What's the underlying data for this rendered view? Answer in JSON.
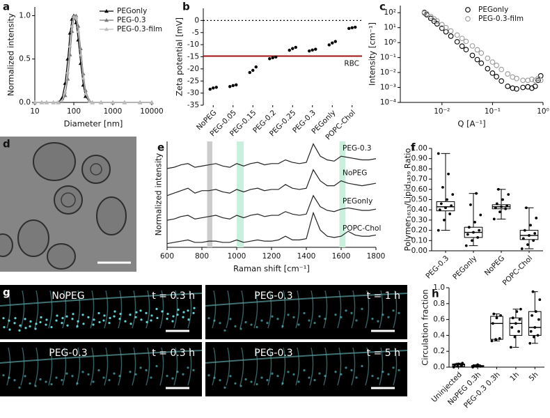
{
  "chart_data": [
    {
      "panel": "a",
      "type": "line",
      "xscale": "log",
      "markers": true,
      "marker": "triangle",
      "legend": "upper right",
      "xlabel": "Diameter [nm]",
      "ylabel": "Normalized intensity",
      "xlim": [
        10,
        10000
      ],
      "xticks": [
        10,
        100,
        1000,
        10000
      ],
      "ylim": [
        0,
        1.1
      ],
      "yticks": [
        {
          "value": 0,
          "label": "0.0"
        },
        {
          "value": 0.5,
          "label": "0.5"
        },
        {
          "value": 1,
          "label": "1.0"
        }
      ],
      "x": [
        10,
        15,
        20,
        30,
        40,
        50,
        60,
        70,
        80,
        90,
        100,
        115,
        130,
        150,
        175,
        200,
        250,
        300,
        500,
        1000,
        2000,
        5000,
        10000
      ],
      "series": [
        {
          "name": "PEGonly",
          "color": "#000000",
          "values": [
            0,
            0,
            0,
            0,
            0,
            0.05,
            0.22,
            0.5,
            0.8,
            0.96,
            1.0,
            0.92,
            0.72,
            0.45,
            0.2,
            0.07,
            0.01,
            0,
            0,
            0,
            0,
            0,
            0
          ]
        },
        {
          "name": "PEG-0.3",
          "color": "#777777",
          "values": [
            0,
            0,
            0,
            0,
            0,
            0.01,
            0.08,
            0.27,
            0.55,
            0.82,
            0.97,
            1.0,
            0.88,
            0.62,
            0.33,
            0.14,
            0.02,
            0,
            0,
            0,
            0,
            0,
            0
          ]
        },
        {
          "name": "PEG-0.3-film",
          "color": "#bbbbbb",
          "values": [
            0,
            0,
            0,
            0,
            0,
            0.02,
            0.12,
            0.35,
            0.65,
            0.88,
            0.99,
            0.98,
            0.82,
            0.55,
            0.28,
            0.1,
            0.01,
            0,
            0,
            0,
            0,
            0,
            0
          ]
        }
      ]
    },
    {
      "panel": "b",
      "type": "strip",
      "color": "#000000",
      "ylabel": "Zeta potential [mV]",
      "categories": [
        "NoPEG",
        "PEG-0.05",
        "PEG-0.15",
        "PEG-0.2",
        "PEG-0.25",
        "PEG-0.3",
        "PEGonly",
        "POPC-Chol"
      ],
      "values": [
        [
          -28.4,
          -27.9,
          -27.6
        ],
        [
          -27.3,
          -26.9,
          -26.6
        ],
        [
          -21.5,
          -20.6,
          -19.2
        ],
        [
          -15.8,
          -15.4,
          -15.1
        ],
        [
          -12.3,
          -11.6,
          -11.1
        ],
        [
          -12.6,
          -12.2,
          -11.9
        ],
        [
          -10.1,
          -9.3,
          -8.7
        ],
        [
          -3.3,
          -3.0,
          -2.8
        ]
      ],
      "ylim": [
        -35,
        5
      ],
      "yticks": [
        -35,
        -30,
        -25,
        -20,
        -15,
        -10,
        -5,
        0
      ],
      "reference_lines": [
        {
          "value": 0,
          "style": "dotted",
          "color": "#000000"
        },
        {
          "value": -14.7,
          "style": "solid",
          "color": "#a01010",
          "label": "RBC"
        }
      ]
    },
    {
      "panel": "c",
      "type": "scatter",
      "xscale": "log",
      "yscale": "log",
      "legend": "upper right",
      "xlabel": "Q [A⁻¹]",
      "ylabel": "Intensity [cm⁻¹]",
      "xlim": [
        0.0015,
        1
      ],
      "xticks": [
        {
          "value": 0.01,
          "label": "10⁻²"
        },
        {
          "value": 0.1,
          "label": "10⁻¹"
        },
        {
          "value": 1,
          "label": "10⁰"
        }
      ],
      "ylim": [
        0.0001,
        300
      ],
      "yticks": [
        {
          "value": 0.0001,
          "label": "10⁻⁴"
        },
        {
          "value": 0.001,
          "label": "10⁻³"
        },
        {
          "value": 0.01,
          "label": "10⁻²"
        },
        {
          "value": 0.1,
          "label": "10⁻¹"
        },
        {
          "value": 1,
          "label": "10⁰"
        },
        {
          "value": 10,
          "label": "10¹"
        },
        {
          "value": 100,
          "label": "10²"
        }
      ],
      "x": [
        0.0045,
        0.005,
        0.006,
        0.007,
        0.008,
        0.01,
        0.012,
        0.015,
        0.02,
        0.025,
        0.03,
        0.04,
        0.05,
        0.06,
        0.08,
        0.1,
        0.12,
        0.15,
        0.2,
        0.25,
        0.3,
        0.4,
        0.5,
        0.6,
        0.7,
        0.8,
        0.9
      ],
      "series": [
        {
          "name": "PEGonly",
          "color": "#000000",
          "values": [
            100,
            73,
            42,
            27,
            18,
            9.1,
            5.3,
            2.7,
            1.14,
            0.58,
            0.34,
            0.14,
            0.073,
            0.042,
            0.018,
            0.0091,
            0.0053,
            0.0027,
            0.0012,
            0.0009,
            0.0008,
            0.001,
            0.0011,
            0.0009,
            0.0012,
            0.003,
            0.006
          ]
        },
        {
          "name": "PEG-0.3-film",
          "color": "#999999",
          "values": [
            110,
            85,
            55,
            38,
            28,
            16,
            10,
            6,
            3.2,
            1.9,
            1.2,
            0.6,
            0.33,
            0.2,
            0.09,
            0.05,
            0.03,
            0.016,
            0.008,
            0.005,
            0.004,
            0.003,
            0.003,
            0.0035,
            0.003,
            0.004,
            0.003
          ]
        }
      ]
    },
    {
      "panel": "e",
      "type": "line",
      "legend": "inline",
      "xlabel": "Raman shift [cm⁻¹]",
      "ylabel": "Normalized intensity",
      "xlim": [
        600,
        1800
      ],
      "xticks": [
        600,
        800,
        1000,
        1200,
        1400,
        1600,
        1800
      ],
      "ylim": [
        -0.1,
        4.2
      ],
      "bands": [
        {
          "range": [
            830,
            860
          ],
          "color": "#cccccc"
        },
        {
          "range": [
            1000,
            1040
          ],
          "color": "#c8f0dc"
        },
        {
          "range": [
            1590,
            1625
          ],
          "color": "#c8f0dc"
        }
      ],
      "x": [
        600,
        640,
        680,
        720,
        760,
        800,
        840,
        880,
        920,
        960,
        1000,
        1040,
        1080,
        1120,
        1160,
        1200,
        1240,
        1280,
        1320,
        1360,
        1400,
        1440,
        1480,
        1520,
        1560,
        1600,
        1640,
        1680,
        1720,
        1760,
        1800
      ],
      "series": [
        {
          "name": "PEG-0.3",
          "color": "#222222",
          "values": [
            3.1,
            3.15,
            3.25,
            3.3,
            3.15,
            3.2,
            3.25,
            3.3,
            3.2,
            3.15,
            3.3,
            3.2,
            3.3,
            3.35,
            3.25,
            3.3,
            3.3,
            3.45,
            3.35,
            3.3,
            3.35,
            4.1,
            3.6,
            3.45,
            3.4,
            3.6,
            3.55,
            3.5,
            3.45,
            3.45,
            3.5
          ]
        },
        {
          "name": "NoPEG",
          "color": "#222222",
          "values": [
            2.0,
            2.1,
            2.2,
            2.3,
            2.1,
            2.2,
            2.2,
            2.25,
            2.15,
            2.1,
            2.25,
            2.15,
            2.25,
            2.3,
            2.2,
            2.25,
            2.25,
            2.45,
            2.3,
            2.25,
            2.3,
            3.05,
            2.6,
            2.4,
            2.4,
            2.6,
            2.5,
            2.45,
            2.4,
            2.45,
            2.5
          ]
        },
        {
          "name": "PEGonly",
          "color": "#222222",
          "values": [
            1.0,
            1.05,
            1.15,
            1.2,
            1.05,
            1.1,
            1.15,
            1.2,
            1.1,
            1.05,
            1.2,
            1.1,
            1.2,
            1.25,
            1.15,
            1.2,
            1.2,
            1.35,
            1.25,
            1.2,
            1.25,
            2.0,
            1.55,
            1.4,
            1.35,
            1.45,
            1.5,
            1.45,
            1.4,
            1.4,
            1.45
          ]
        },
        {
          "name": "POPC-Chol",
          "color": "#222222",
          "values": [
            0.05,
            0.1,
            0.15,
            0.2,
            0.1,
            0.1,
            0.15,
            0.15,
            0.1,
            0.1,
            0.2,
            0.1,
            0.15,
            0.2,
            0.15,
            0.15,
            0.2,
            0.35,
            0.2,
            0.2,
            0.25,
            1.3,
            0.6,
            0.35,
            0.3,
            0.35,
            0.55,
            0.4,
            0.35,
            0.35,
            0.4
          ]
        }
      ]
    },
    {
      "panel": "f",
      "type": "box",
      "color": "#000000",
      "ylabel": "Polymer₁₆₁₃/Lipid₁₄₃₉ Ratio",
      "categories": [
        "PEG-0.3",
        "PEGonly",
        "NoPEG",
        "POPC-Chol"
      ],
      "ylim": [
        0,
        1.0
      ],
      "yticks": [
        {
          "value": 0,
          "label": "0.00"
        },
        {
          "value": 0.1,
          "label": "0.10"
        },
        {
          "value": 0.2,
          "label": "0.20"
        },
        {
          "value": 0.3,
          "label": "0.30"
        },
        {
          "value": 0.4,
          "label": "0.40"
        },
        {
          "value": 0.5,
          "label": "0.50"
        },
        {
          "value": 0.6,
          "label": "0.60"
        },
        {
          "value": 0.7,
          "label": "0.70"
        },
        {
          "value": 0.8,
          "label": "0.80"
        },
        {
          "value": 0.9,
          "label": "0.90"
        },
        {
          "value": 1.0,
          "label": "1.00"
        }
      ],
      "boxes": [
        {
          "min": 0.2,
          "q1": 0.39,
          "median": 0.43,
          "q3": 0.48,
          "max": 0.95
        },
        {
          "min": 0.05,
          "q1": 0.13,
          "median": 0.18,
          "q3": 0.23,
          "max": 0.56
        },
        {
          "min": 0.31,
          "q1": 0.41,
          "median": 0.43,
          "q3": 0.45,
          "max": 0.6
        },
        {
          "min": 0.02,
          "q1": 0.11,
          "median": 0.15,
          "q3": 0.2,
          "max": 0.42
        }
      ],
      "points": [
        [
          0.2,
          0.3,
          0.36,
          0.4,
          0.42,
          0.44,
          0.46,
          0.5,
          0.55,
          0.62,
          0.75,
          0.95
        ],
        [
          0.05,
          0.1,
          0.13,
          0.16,
          0.18,
          0.2,
          0.23,
          0.28,
          0.35,
          0.45,
          0.56
        ],
        [
          0.31,
          0.38,
          0.41,
          0.42,
          0.43,
          0.44,
          0.46,
          0.5,
          0.55,
          0.6
        ],
        [
          0.02,
          0.06,
          0.1,
          0.12,
          0.15,
          0.17,
          0.2,
          0.25,
          0.32,
          0.42
        ]
      ]
    },
    {
      "panel": "h",
      "type": "box",
      "color": "#000000",
      "ylabel": "Circulation fraction",
      "categories": [
        "Uninjected",
        "NoPEG 0.3h",
        "PEG-0.3 0.3h",
        "1h",
        "5h"
      ],
      "ylim": [
        0,
        1.0
      ],
      "yticks": [
        {
          "value": 0,
          "label": "0.0"
        },
        {
          "value": 0.2,
          "label": "0.2"
        },
        {
          "value": 0.4,
          "label": "0.4"
        },
        {
          "value": 0.6,
          "label": "0.6"
        },
        {
          "value": 0.8,
          "label": "0.8"
        },
        {
          "value": 1.0,
          "label": "1.0"
        }
      ],
      "boxes": [
        {
          "min": 0.0,
          "q1": 0.01,
          "median": 0.03,
          "q3": 0.04,
          "max": 0.05
        },
        {
          "min": 0.0,
          "q1": 0.005,
          "median": 0.01,
          "q3": 0.02,
          "max": 0.03
        },
        {
          "min": 0.33,
          "q1": 0.35,
          "median": 0.55,
          "q3": 0.64,
          "max": 0.67
        },
        {
          "min": 0.25,
          "q1": 0.4,
          "median": 0.55,
          "q3": 0.62,
          "max": 0.73
        },
        {
          "min": 0.3,
          "q1": 0.4,
          "median": 0.5,
          "q3": 0.7,
          "max": 0.95
        }
      ],
      "points": [
        [
          0.0,
          0.01,
          0.02,
          0.03,
          0.04,
          0.05
        ],
        [
          0.0,
          0.01,
          0.01,
          0.02,
          0.03
        ],
        [
          0.33,
          0.35,
          0.36,
          0.55,
          0.62,
          0.65,
          0.67
        ],
        [
          0.25,
          0.38,
          0.45,
          0.5,
          0.55,
          0.6,
          0.62,
          0.7,
          0.73
        ],
        [
          0.3,
          0.38,
          0.4,
          0.45,
          0.5,
          0.6,
          0.65,
          0.7,
          0.85,
          0.95
        ]
      ]
    }
  ],
  "images": {
    "d": {
      "panel": "d"
    },
    "g": {
      "panel": "g",
      "tiles": [
        {
          "label": "NoPEG",
          "time": "t = 0.3 h"
        },
        {
          "label": "PEG-0.3",
          "time": "t = 1 h"
        },
        {
          "label": "PEG-0.3",
          "time": "t = 0.3 h"
        },
        {
          "label": "PEG-0.3",
          "time": "t = 5 h"
        }
      ]
    }
  }
}
